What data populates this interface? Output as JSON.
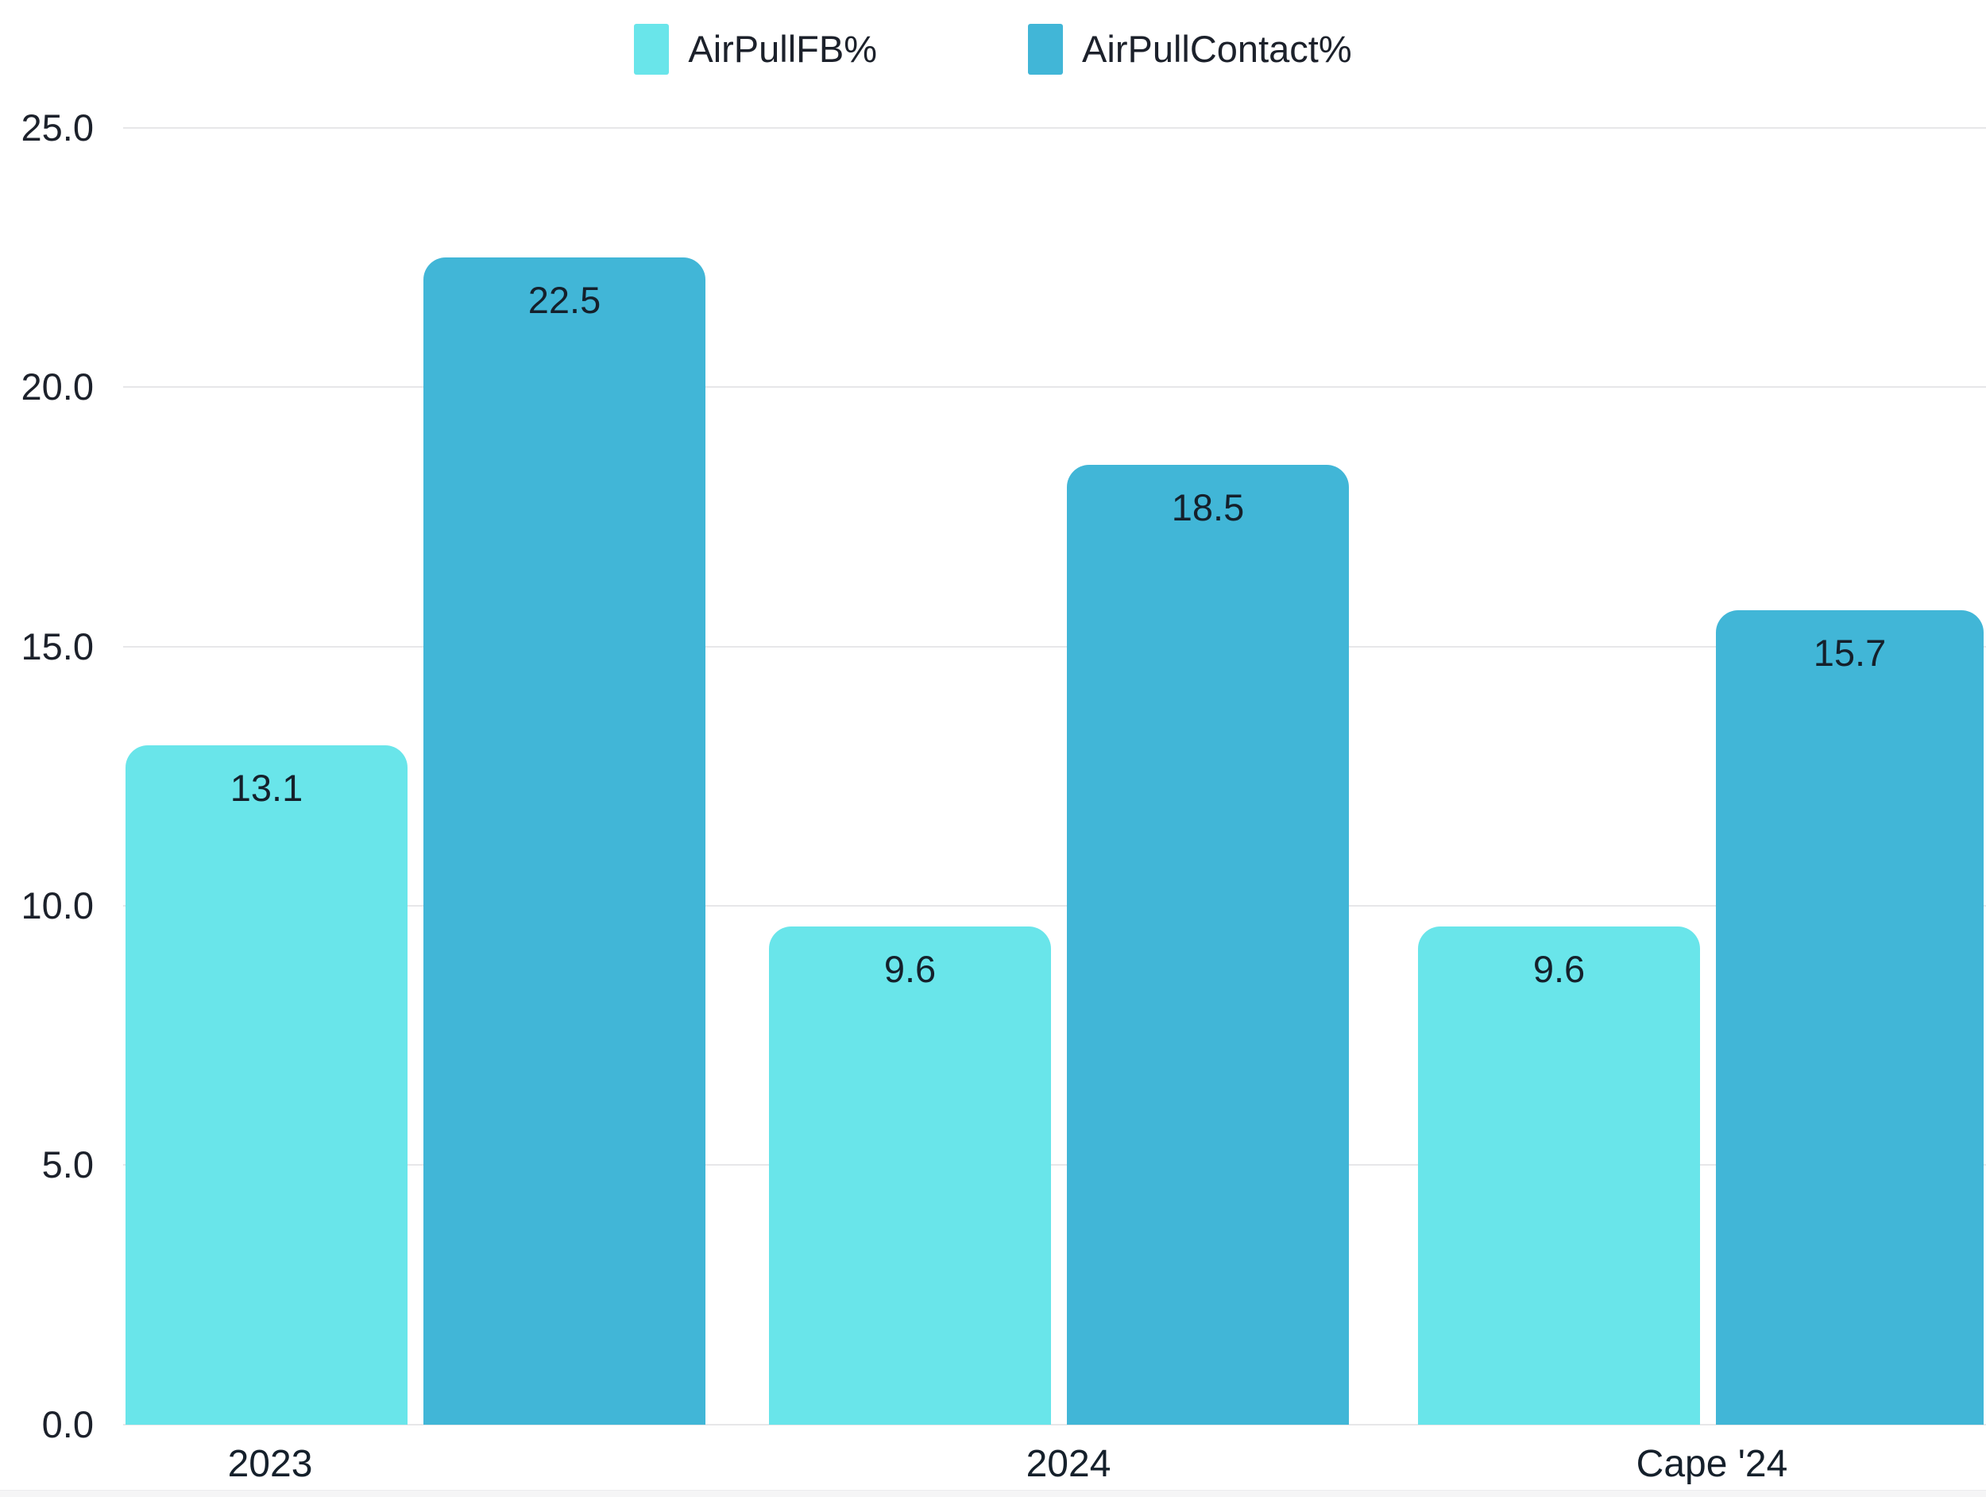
{
  "chart_data": {
    "type": "bar",
    "title": "",
    "xlabel": "",
    "ylabel": "",
    "categories": [
      "2023",
      "2024",
      "Cape '24"
    ],
    "series": [
      {
        "name": "AirPullFB%",
        "color": "#69E5EA",
        "values": [
          13.1,
          9.6,
          9.6
        ]
      },
      {
        "name": "AirPullContact%",
        "color": "#41B6D7",
        "values": [
          22.5,
          18.5,
          15.7
        ]
      }
    ],
    "ylim": [
      0,
      25
    ],
    "ytick_step": 5,
    "yticks_top_to_bottom": [
      "25.0",
      "20.0",
      "15.0",
      "10.0",
      "5.0",
      "0.0"
    ],
    "grid": true,
    "grid_color": "#E7E7E9",
    "text_color": "#1C212B",
    "legend_position": "top-center",
    "value_label_position": "inside-top",
    "bar_corner_style": "rounded-top"
  }
}
